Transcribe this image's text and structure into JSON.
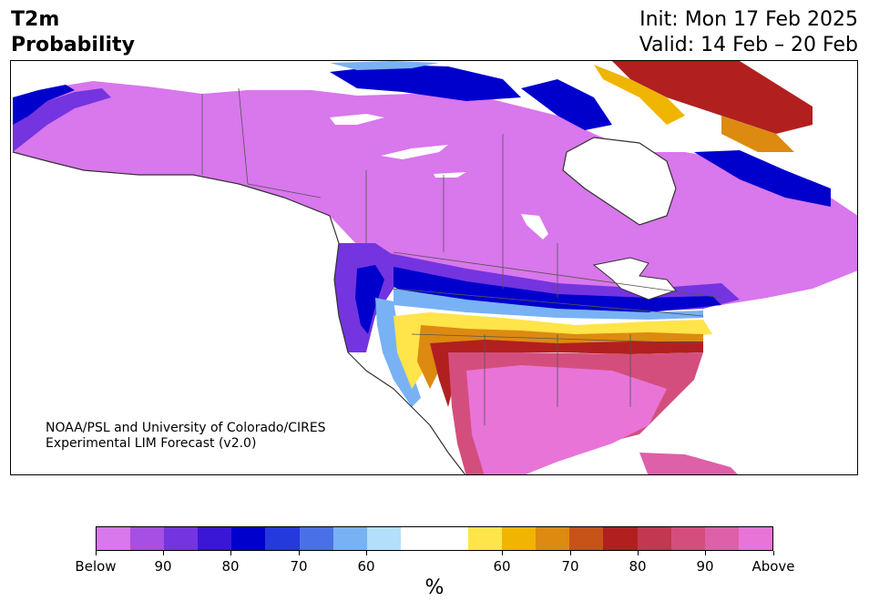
{
  "title": {
    "line1": "T2m",
    "line2": "Probability"
  },
  "header": {
    "init": "Init: Mon 17 Feb 2025",
    "valid": "Valid: 14 Feb – 20 Feb"
  },
  "credit": {
    "line1": "NOAA/PSL and University of Colorado/CIRES",
    "line2": "Experimental LIM Forecast (v2.0)"
  },
  "colorbar": {
    "colors": [
      "#d977ec",
      "#a64fe3",
      "#7434e0",
      "#3a16d6",
      "#0000cd",
      "#2539dc",
      "#4a70e8",
      "#78b2f4",
      "#b3dffb",
      "#ffffff",
      "#ffffff",
      "#ffe44a",
      "#f0b500",
      "#dd8a10",
      "#c75316",
      "#b1201f",
      "#c23850",
      "#d44e7d",
      "#dd60a8",
      "#e874d8"
    ],
    "tick_labels": [
      "Below",
      "90",
      "80",
      "70",
      "60",
      "60",
      "70",
      "80",
      "90",
      "Above"
    ],
    "unit": "%"
  },
  "legend_colors": {
    "below": "#d977ec",
    "cold_mid": "#7434e0",
    "cold_strong": "#0000cd",
    "cold_light": "#78b2f4",
    "neutral": "#ffffff",
    "warm_light": "#ffe44a",
    "warm_mid": "#dd8a10",
    "warm_strong": "#b1201f",
    "above": "#e874d8"
  }
}
